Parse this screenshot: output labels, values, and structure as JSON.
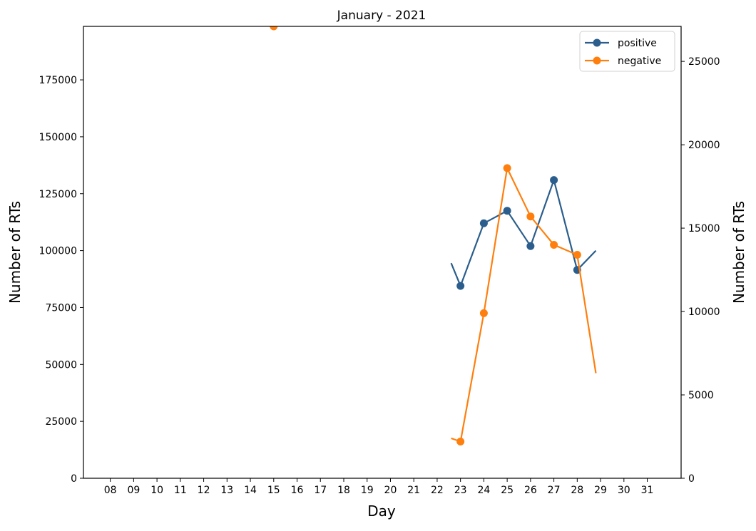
{
  "chart_data": {
    "type": "line",
    "title": "January - 2021",
    "xlabel": "Day",
    "ylabel_left": "Number of RTs",
    "ylabel_right": "Number of RTs",
    "x_ticks": [
      "08",
      "09",
      "10",
      "11",
      "12",
      "13",
      "14",
      "15",
      "16",
      "17",
      "18",
      "19",
      "20",
      "21",
      "22",
      "23",
      "24",
      "25",
      "26",
      "27",
      "28",
      "29",
      "30",
      "31"
    ],
    "xlim": [
      6.85,
      32.45
    ],
    "y_left": {
      "ylim": [
        0,
        198500
      ],
      "ticks": [
        0,
        25000,
        50000,
        75000,
        100000,
        125000,
        150000,
        175000
      ]
    },
    "y_right": {
      "ylim": [
        0,
        27100
      ],
      "ticks": [
        0,
        5000,
        10000,
        15000,
        20000,
        25000
      ]
    },
    "legend_position": "top-right",
    "series": [
      {
        "name": "positive",
        "axis": "left",
        "color": "#2b5e8c",
        "marker": "circle",
        "points": [
          [
            22.6,
            94500
          ],
          [
            23,
            84500
          ],
          [
            24,
            112000
          ],
          [
            25,
            117500
          ],
          [
            26,
            102000
          ],
          [
            27,
            131000
          ],
          [
            28,
            91500
          ],
          [
            28.8,
            100000
          ]
        ]
      },
      {
        "name": "negative",
        "axis": "right",
        "color": "#ff7f0e",
        "marker": "circle",
        "points": [
          [
            22.6,
            2400
          ],
          [
            23,
            2200
          ],
          [
            24,
            9900
          ],
          [
            25,
            18600
          ],
          [
            26,
            15700
          ],
          [
            27,
            14000
          ],
          [
            28,
            13400
          ],
          [
            28.8,
            6300
          ]
        ]
      }
    ],
    "annotations": [
      {
        "series": "negative",
        "x": 15,
        "y_left_units": 198500,
        "marker": "circle",
        "note_color": "#ff7f0e"
      }
    ]
  }
}
